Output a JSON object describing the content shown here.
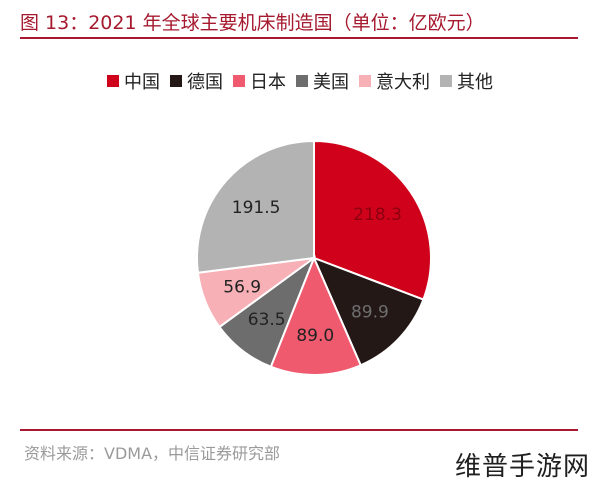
{
  "header": {
    "figure_title": "图 13：2021 年全球主要机床制造国（单位：亿欧元）"
  },
  "footer": {
    "source": "资料来源：VDMA，中信证券研究部",
    "watermark": "维普手游网"
  },
  "chart_data": {
    "type": "pie",
    "title": "",
    "unit": "亿欧元",
    "legend_position": "top",
    "start_angle_deg": 0,
    "direction": "clockwise",
    "slices": [
      {
        "label": "中国",
        "value": 218.3,
        "display": "218.3",
        "color": "#d0021b",
        "label_color": "#8c0010"
      },
      {
        "label": "德国",
        "value": 89.9,
        "display": "89.9",
        "color": "#231815",
        "label_color": "#6e6e6e"
      },
      {
        "label": "日本",
        "value": 89.0,
        "display": "89.0",
        "color": "#ef5a6e",
        "label_color": "#222222"
      },
      {
        "label": "美国",
        "value": 63.5,
        "display": "63.5",
        "color": "#6d6d6d",
        "label_color": "#222222"
      },
      {
        "label": "意大利",
        "value": 56.9,
        "display": "56.9",
        "color": "#f7b0b6",
        "label_color": "#222222"
      },
      {
        "label": "其他",
        "value": 191.5,
        "display": "191.5",
        "color": "#b3b3b3",
        "label_color": "#222222"
      }
    ]
  }
}
